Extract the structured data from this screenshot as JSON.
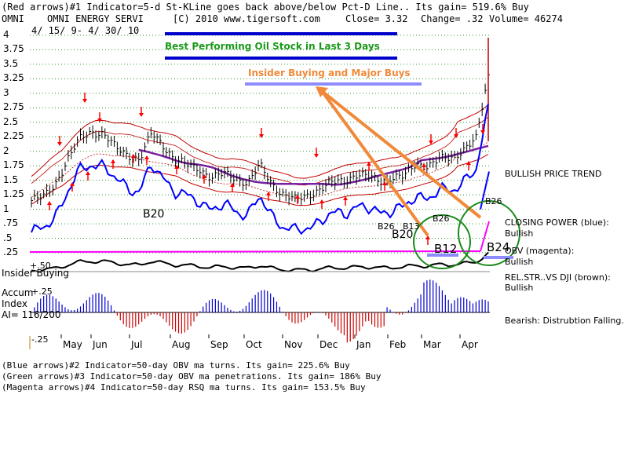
{
  "header": {
    "line1": "(Red arrows)#1 Indicator=5-d St-KLine goes back above/below Pct-D Line.. Its gain= 519.6% Buy",
    "ticker": "OMNI",
    "company": "OMNI ENERGY SERVI",
    "copyright": "[C) 2010 www.tigersoft.com",
    "close": "Close=  3.32",
    "change": "Change= .32",
    "volume": "Volume= 46274",
    "date_range": "4/ 15/ 9- 4/ 30/ 10"
  },
  "annotations": {
    "green_title": "Best Performing Oil Stock in Last 3 Days",
    "orange_title": "Insider Buying and Major Buys"
  },
  "right_labels": {
    "bullish_trend": "BULLISH PRICE TREND",
    "closing_power": "CLOSING POWER (blue):",
    "closing_power_state": "Bullish",
    "obv": "OBV (magenta):",
    "obv_state": "Bullish",
    "relstr": "REL.STR..VS DJI (brown):",
    "relstr_state": "Bullish",
    "bearish": "Bearish: Distrubtion Falling."
  },
  "left_labels": {
    "insider": "Insider Buying",
    "accum": "Accum",
    "index": "Index",
    "ai": "AI= 116/200",
    "plus50": "+.50",
    "plus25": "+.25",
    "minus25": "-.25"
  },
  "signals": {
    "b20a": "B20",
    "b20b": "B20",
    "b26a": "B26",
    "b13": "B13",
    "b26b": "B26",
    "b26c": "B26",
    "b12": "B12",
    "b24": "B24"
  },
  "footer": {
    "line1": "(Blue arrows)#2 Indicator=50-day OBV ma turns. Its gain= 225.6% Buy",
    "line2": "(Green arrows)#3 Indicator=50-day OBV ma penetrations. Its gain= 186% Buy",
    "line3": "(Magenta arrows)#4 Indicator=50-day RSQ ma turns. Its gain= 153.5% Buy"
  },
  "chart_data": {
    "type": "line",
    "y_ticks": [
      "4",
      "3.75",
      "3.5",
      "3.25",
      "3",
      "2.75",
      "2.5",
      "2.25",
      "2",
      "1.75",
      "1.5",
      "1.25",
      "1",
      ".75",
      ".5",
      ".25"
    ],
    "ylim": [
      0.25,
      4
    ],
    "months": [
      "May",
      "Jun",
      "Jul",
      "Aug",
      "Sep",
      "Oct",
      "Nov",
      "Dec",
      "Jan",
      "Feb",
      "Mar",
      "Apr"
    ],
    "grid": true,
    "colors": {
      "price": "#000000",
      "closing_power": "#0000ff",
      "obv": "#ff00ff",
      "ma": "#7a1fa0",
      "bands": "#c00000",
      "relstr": "#000000",
      "accum_pos": "#0000cc",
      "accum_neg": "#cc0000",
      "arrows": "#ff0000",
      "circles": "#1a8a1a",
      "orange": "#f08a3a",
      "navy": "#0000cc",
      "lavender": "#8c8cff"
    },
    "series": [
      {
        "name": "",
        "values": [
          1.15,
          1.2,
          1.45,
          1.85,
          2.2,
          2.35,
          2.3,
          2.05,
          1.95,
          1.85,
          2.3,
          2.1,
          1.85,
          1.75,
          1.7,
          1.55,
          1.6,
          1.55,
          1.45,
          1.75,
          1.45,
          1.25,
          1.15,
          1.25,
          1.35,
          1.45,
          1.5,
          1.6,
          1.55,
          1.5,
          1.55,
          1.55,
          1.8,
          1.75,
          1.85,
          1.9,
          2.05,
          2.2,
          3.32
        ]
      }
    ]
  }
}
